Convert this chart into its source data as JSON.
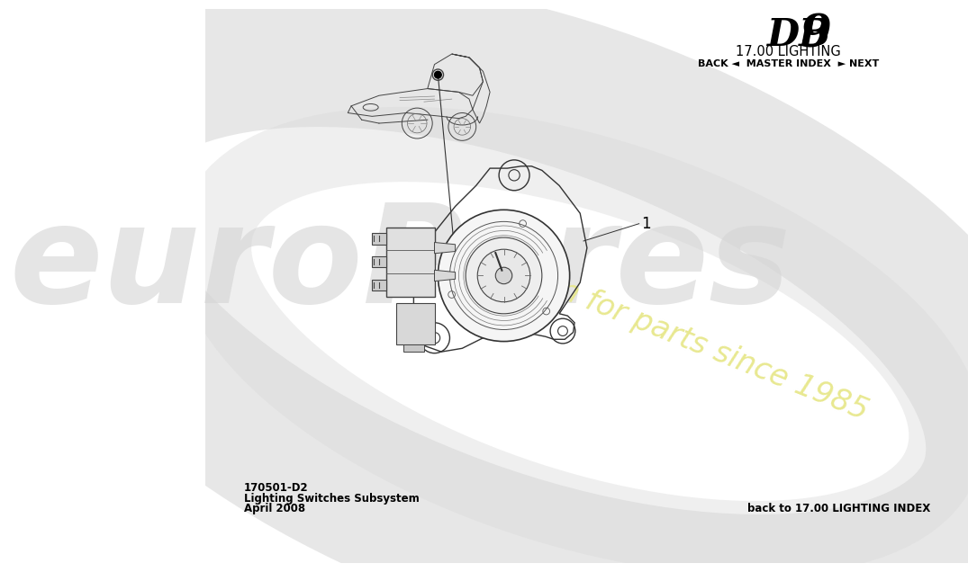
{
  "title_db9": "DB 9",
  "title_section": "17.00 LIGHTING",
  "nav_text": "BACK ◄  MASTER INDEX  ► NEXT",
  "part_number": "170501-D2",
  "subsystem": "Lighting Switches Subsystem",
  "date": "April 2008",
  "footer_right": "back to 17.00 LIGHTING INDEX",
  "watermark_line1": "euroPares",
  "watermark_line2": "a passion for parts since 1985",
  "part_label": "1",
  "bg_color": "#ffffff",
  "text_color": "#000000",
  "draw_color": "#333333",
  "watermark_gray": "#d8d8d8",
  "watermark_yellow": "#e8e890"
}
